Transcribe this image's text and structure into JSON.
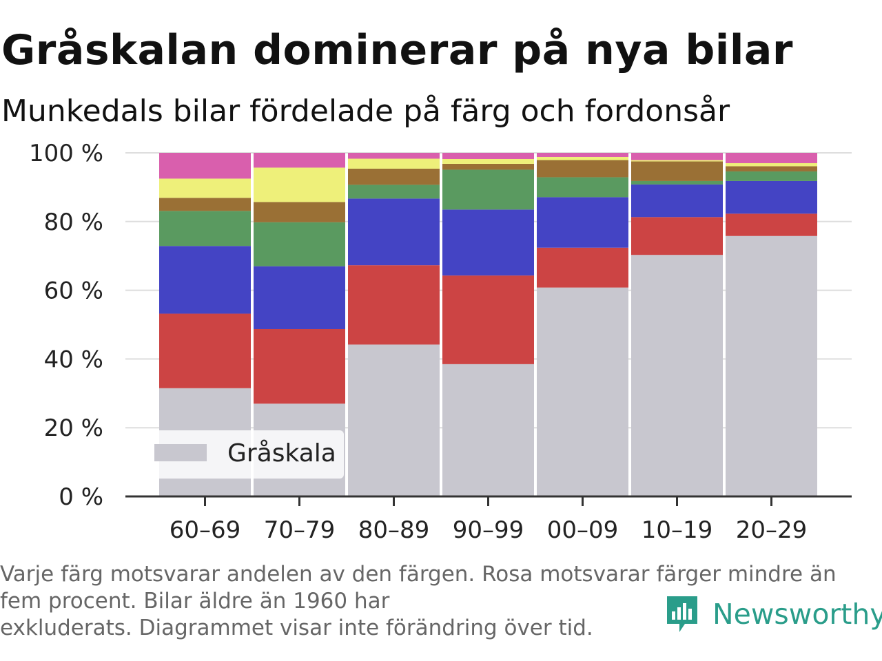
{
  "header": {
    "title": "Gråskalan dominerar på nya bilar",
    "subtitle": "Munkedals bilar fördelade på färg och fordonsår"
  },
  "chart_data": {
    "type": "bar",
    "stacked": true,
    "categories": [
      "60–69",
      "70–79",
      "80–89",
      "90–99",
      "00–09",
      "10–19",
      "20–29"
    ],
    "ylim": [
      0,
      100
    ],
    "yticks": [
      0,
      20,
      40,
      60,
      80,
      100
    ],
    "ytick_labels": [
      "0 %",
      "20 %",
      "40 %",
      "60 %",
      "80 %",
      "100 %"
    ],
    "xlabel": "",
    "ylabel": "",
    "grid": true,
    "series": [
      {
        "color": "#c8c7cf",
        "values": [
          31.5,
          27,
          44.2,
          38.5,
          60.8,
          70.3,
          75.8
        ]
      },
      {
        "color": "#cc4444",
        "values": [
          21.7,
          21.7,
          23.1,
          25.8,
          11.6,
          11.0,
          6.5
        ]
      },
      {
        "color": "#4444c4",
        "values": [
          19.7,
          18.3,
          19.4,
          19.2,
          14.7,
          9.5,
          9.5
        ]
      },
      {
        "color": "#5a9a60",
        "values": [
          10.2,
          12.8,
          4.0,
          11.6,
          5.8,
          1.0,
          2.8
        ]
      },
      {
        "color": "#9a7035",
        "values": [
          3.8,
          5.9,
          4.7,
          1.7,
          5.0,
          5.7,
          1.5
        ]
      },
      {
        "color": "#eef07a",
        "values": [
          5.6,
          10.0,
          2.9,
          1.4,
          0.9,
          0.4,
          0.9
        ]
      },
      {
        "color": "#d95fad",
        "values": [
          7.5,
          4.3,
          1.7,
          1.8,
          1.2,
          2.1,
          3.0
        ]
      }
    ],
    "legend": {
      "label": "Gråskala",
      "color": "#c8c7cf",
      "position": "bottom-left"
    }
  },
  "footnote": {
    "lines": [
      "Varje färg motsvarar andelen av den färgen. Rosa motsvarar färger mindre än",
      "fem procent. Bilar äldre än 1960 har",
      "exkluderats. Diagrammet visar inte förändring över tid."
    ]
  },
  "brand": {
    "name": "Newsworthy",
    "icon": "newsworthy-logo-icon",
    "color": "#2a9d8a"
  }
}
